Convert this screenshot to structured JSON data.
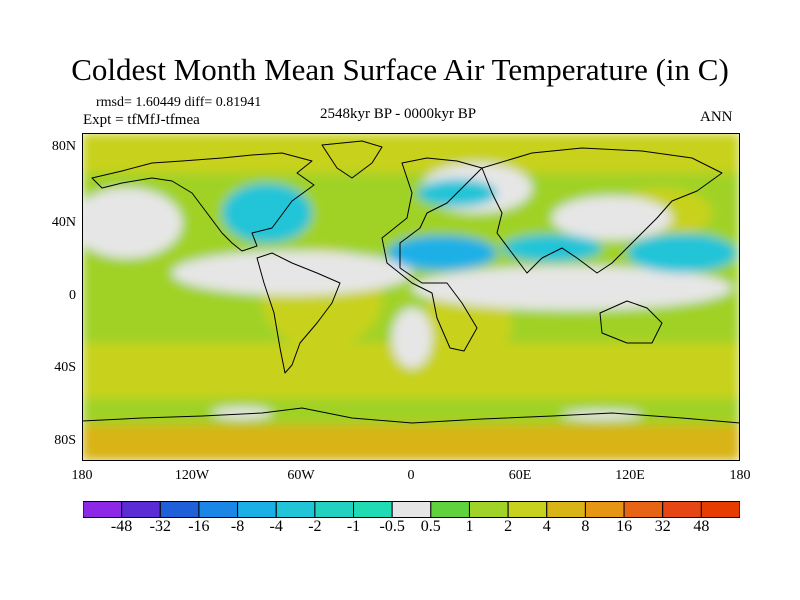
{
  "title": "Coldest Month Mean Surface Air Temperature (in C)",
  "stats": "rmsd= 1.60449 diff= 0.81941",
  "expt": "Expt = tfMfJ-tfmea",
  "period": "2548kyr BP - 0000kyr BP",
  "season": "ANN",
  "map": {
    "lat_ticks": [
      "80N",
      "40N",
      "0",
      "40S",
      "80S"
    ],
    "lon_ticks": [
      "180",
      "120W",
      "60W",
      "0",
      "60E",
      "120E",
      "180"
    ]
  },
  "legend": {
    "labels": [
      "-48",
      "-32",
      "-16",
      "-8",
      "-4",
      "-2",
      "-1",
      "-0.5",
      "0.5",
      "1",
      "2",
      "4",
      "8",
      "16",
      "32",
      "48"
    ],
    "colors": [
      "#8c28e6",
      "#5b2bd6",
      "#1f5fd8",
      "#1a86e6",
      "#1ab0e6",
      "#22c4d8",
      "#22d2c0",
      "#1fdcb4",
      "#e6e6e6",
      "#5fd23c",
      "#a0d228",
      "#c8d21e",
      "#d8b414",
      "#e69614",
      "#e66414",
      "#e64614",
      "#e63c00"
    ]
  },
  "colors": {
    "warm_light": "#a0d228",
    "warm_medium": "#c8d21e",
    "warm_strong": "#d8b414",
    "neutral": "#e6e6e6",
    "cool_light": "#22c4d8",
    "cool_medium": "#1ab0e6"
  }
}
